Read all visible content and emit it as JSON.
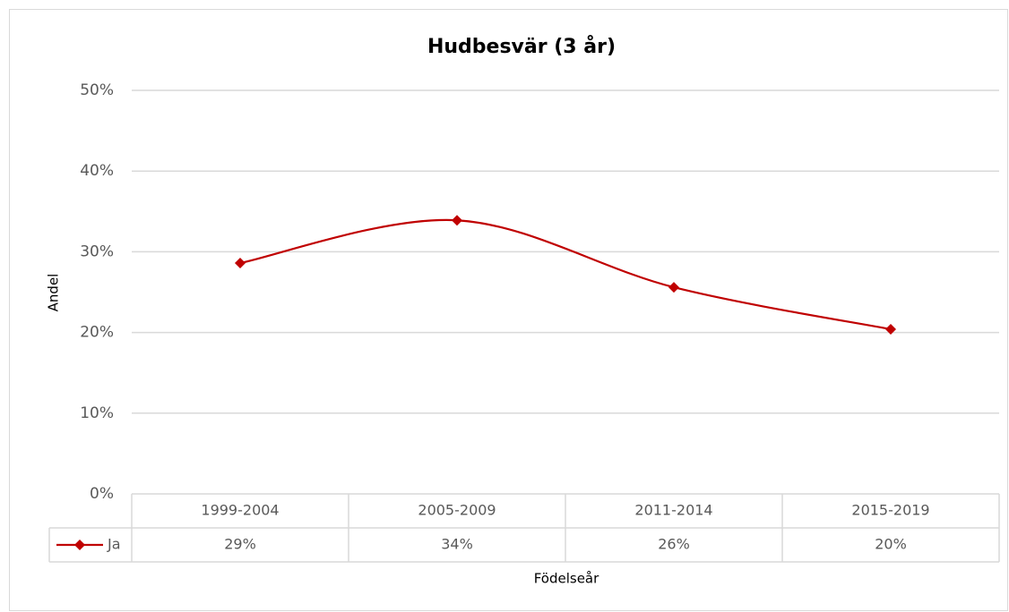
{
  "chart_data": {
    "type": "line",
    "title": "Hudbesvär (3 år)",
    "x_label": "Födelseår",
    "y_label": "Andel",
    "categories": [
      "1999-2004",
      "2005-2009",
      "2011-2014",
      "2015-2019"
    ],
    "series": [
      {
        "name": "Ja",
        "color": "#c00000",
        "values": [
          28.6,
          33.9,
          25.6,
          20.4
        ],
        "value_labels": [
          "29%",
          "34%",
          "26%",
          "20%"
        ]
      }
    ],
    "ylim": [
      0,
      50
    ],
    "yticks": [
      {
        "value": 0,
        "label": "0%"
      },
      {
        "value": 10,
        "label": "10%"
      },
      {
        "value": 20,
        "label": "20%"
      },
      {
        "value": 30,
        "label": "30%"
      },
      {
        "value": 40,
        "label": "40%"
      },
      {
        "value": 50,
        "label": "50%"
      }
    ],
    "grid": true,
    "smooth": true,
    "marker": "diamond",
    "data_table": true
  }
}
